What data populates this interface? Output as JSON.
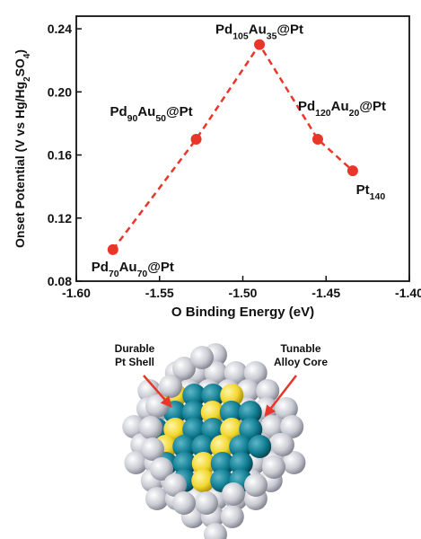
{
  "chart_data": {
    "type": "line",
    "x_label": "O Binding Energy (eV)",
    "y_label": "Onset Potential (V vs Hg/Hg2SO4)",
    "x": [
      -1.578,
      -1.528,
      -1.49,
      -1.455,
      -1.434
    ],
    "series": [
      {
        "color": "#e8372a",
        "values": [
          0.1,
          0.17,
          0.23,
          0.17,
          0.15
        ]
      }
    ],
    "point_labels": [
      "Pd70Au70@Pt",
      "Pd90Au50@Pt",
      "Pd105Au35@Pt",
      "Pd120Au20@Pt",
      "Pt140"
    ],
    "xlim": [
      -1.6,
      -1.4
    ],
    "xticks": [
      {
        "value": -1.6,
        "label": "-1.60"
      },
      -1.55,
      {
        "value": -1.5,
        "label": "-1.50"
      },
      -1.45,
      {
        "value": -1.4,
        "label": "-1.40"
      }
    ],
    "ylim": [
      0.08,
      0.248
    ],
    "yticks": [
      0.08,
      0.12,
      0.16,
      {
        "value": 0.2,
        "label": "0.20"
      },
      0.24
    ]
  },
  "illustration": {
    "labels": [
      [
        "Durable",
        "Pt Shell"
      ],
      [
        "Tunable",
        "Alloy Core"
      ]
    ]
  }
}
